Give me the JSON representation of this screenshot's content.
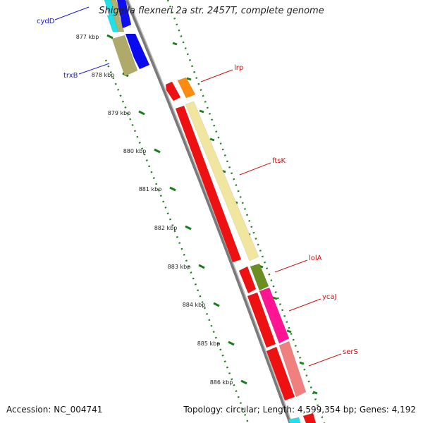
{
  "title": "Shigella flexneri 2a str. 2457T, complete genome",
  "footer": {
    "accession": "Accession: NC_004741",
    "topology": "Topology: circular; Length: 4,599,354 bp; Genes: 4,192"
  },
  "colors": {
    "backbone": "#8c8c8c",
    "forward_ruler": "#208020",
    "kbp_ruler": "#1c7c1c",
    "gene_label": "#cc1111",
    "left_label": "#1a1acc"
  },
  "kbp_ticks": [
    "877 kbp",
    "878 kbp",
    "879 kbp",
    "880 kbp",
    "881 kbp",
    "882 kbp",
    "883 kbp",
    "884 kbp",
    "885 kbp",
    "886 kbp"
  ],
  "gene_labels": [
    {
      "name": "lrp",
      "side": "right"
    },
    {
      "name": "ftsK",
      "side": "right"
    },
    {
      "name": "lolA",
      "side": "right"
    },
    {
      "name": "ycaJ",
      "side": "right"
    },
    {
      "name": "serS",
      "side": "right"
    },
    {
      "name": "cydD",
      "side": "left"
    },
    {
      "name": "trxB",
      "side": "left"
    }
  ],
  "features": [
    {
      "name": "cydD-cyan",
      "color": "#22e0e8"
    },
    {
      "name": "cydD-olive",
      "color": "#b5b070"
    },
    {
      "name": "cydD-blue",
      "color": "#1010ee"
    },
    {
      "name": "trxB-olive",
      "color": "#b0aa6a"
    },
    {
      "name": "trxB-blue",
      "color": "#0a0aee"
    },
    {
      "name": "lrp-red",
      "color": "#ee1111"
    },
    {
      "name": "lrp-orange",
      "color": "#ff8c10"
    },
    {
      "name": "ftsK-red",
      "color": "#ee1111"
    },
    {
      "name": "ftsK-pale",
      "color": "#f0e6a0"
    },
    {
      "name": "lolA-red",
      "color": "#ee1111"
    },
    {
      "name": "lolA-green",
      "color": "#6b8e23"
    },
    {
      "name": "ycaJ-red",
      "color": "#ee1111"
    },
    {
      "name": "ycaJ-pink",
      "color": "#ff1493"
    },
    {
      "name": "serS-red",
      "color": "#ee1111"
    },
    {
      "name": "serS-salmon",
      "color": "#f08080"
    },
    {
      "name": "bottom-cyan",
      "color": "#22e0e8"
    },
    {
      "name": "bottom-red",
      "color": "#ee1111"
    }
  ]
}
